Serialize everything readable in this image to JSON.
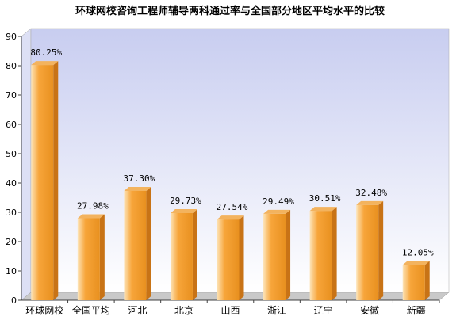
{
  "chart_data": {
    "type": "bar",
    "title": "环球网校咨询工程师辅导两科通过率与全国部分地区平均水平的比较",
    "xlabel": "",
    "ylabel": "",
    "ylim": [
      0,
      90
    ],
    "yticks": [
      "0",
      "10",
      "20",
      "30",
      "40",
      "50",
      "60",
      "70",
      "80",
      "90"
    ],
    "grid": false,
    "categories": [
      "环球网校",
      "全国平均",
      "河北",
      "北京",
      "山西",
      "浙江",
      "辽宁",
      "安徽",
      "新疆"
    ],
    "values": [
      80.25,
      27.98,
      37.3,
      29.73,
      27.54,
      29.49,
      30.51,
      32.48,
      12.05
    ],
    "data_labels": [
      "80.25%",
      "27.98%",
      "37.30%",
      "29.73%",
      "27.54%",
      "29.49%",
      "30.51%",
      "32.48%",
      "12.05%"
    ],
    "colors": {
      "bar_light": "#fde4b8",
      "bar_mid": "#f7a53a",
      "bar_dark": "#e8901f",
      "bar_top": "#f3b35e",
      "bar_side": "#c87316",
      "wall_top": "#c8cdf0",
      "wall_bottom": "#ffffff",
      "axis": "#404040"
    }
  }
}
